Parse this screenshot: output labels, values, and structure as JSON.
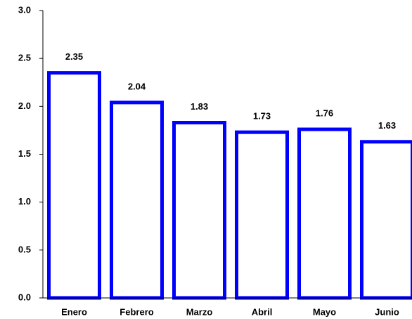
{
  "chart_data": {
    "type": "bar",
    "categories": [
      "Enero",
      "Febrero",
      "Marzo",
      "Abril",
      "Mayo",
      "Junio"
    ],
    "values": [
      2.35,
      2.04,
      1.83,
      1.73,
      1.76,
      1.63
    ],
    "color": "#0000ff",
    "ylim": [
      0,
      3
    ],
    "yticks": [
      {
        "value": 0,
        "label": "0.0"
      },
      0.5,
      {
        "value": 1,
        "label": "1.0"
      },
      1.5,
      {
        "value": 2,
        "label": "2.0"
      },
      2.5,
      {
        "value": 3,
        "label": "3.0"
      }
    ],
    "grid": false
  }
}
